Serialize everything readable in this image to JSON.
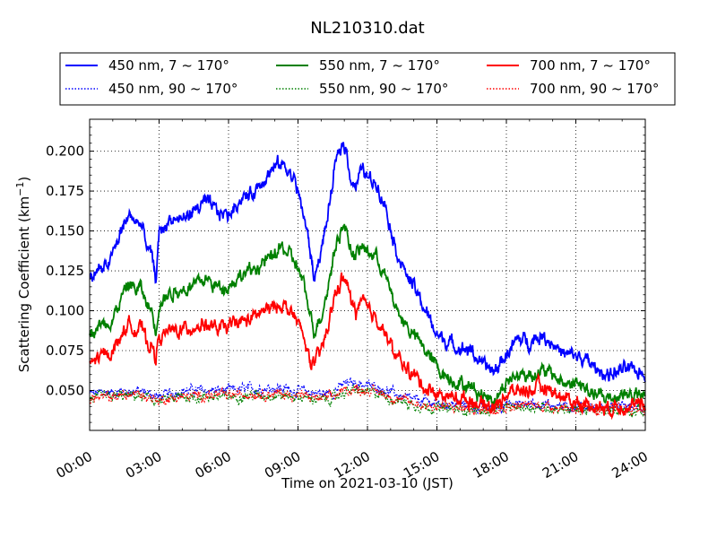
{
  "chart_data": {
    "type": "line",
    "title": "NL210310.dat",
    "xlabel": "Time on 2021-03-10 (JST)",
    "ylabel": "Scattering Coefficient (km",
    "ylabel_sup": "−1",
    "ylabel_close": ")",
    "xlim": [
      0,
      24
    ],
    "ylim": [
      0.025,
      0.22
    ],
    "x_ticks": [
      0,
      3,
      6,
      9,
      12,
      15,
      18,
      21,
      24
    ],
    "x_tick_labels": [
      "00:00",
      "03:00",
      "06:00",
      "09:00",
      "12:00",
      "15:00",
      "18:00",
      "21:00",
      "24:00"
    ],
    "y_ticks": [
      0.05,
      0.075,
      0.1,
      0.125,
      0.15,
      0.175,
      0.2
    ],
    "y_tick_labels": [
      "0.050",
      "0.075",
      "0.100",
      "0.125",
      "0.150",
      "0.175",
      "0.200"
    ],
    "grid": true,
    "legend_placement": "top",
    "series": [
      {
        "name": "450 nm, 7 ~ 170°",
        "color": "#0000ff",
        "style": "solid",
        "x": [
          0,
          0.3,
          0.6,
          1.0,
          1.5,
          1.8,
          2.0,
          2.2,
          2.5,
          2.7,
          2.85,
          3.0,
          3.2,
          3.5,
          4.0,
          4.5,
          5.0,
          5.5,
          6.0,
          6.5,
          7.0,
          7.5,
          8.0,
          8.3,
          8.6,
          8.9,
          9.2,
          9.5,
          9.7,
          10.0,
          10.3,
          10.6,
          10.9,
          11.1,
          11.3,
          11.5,
          11.8,
          12.0,
          12.4,
          12.8,
          13.2,
          13.6,
          14.0,
          14.5,
          15.0,
          15.5,
          16.0,
          16.5,
          17.0,
          17.5,
          18.0,
          18.5,
          19.0,
          19.5,
          20.0,
          20.5,
          21.0,
          21.5,
          22.0,
          22.5,
          23.0,
          23.5,
          24.0
        ],
        "values": [
          0.118,
          0.126,
          0.125,
          0.135,
          0.155,
          0.16,
          0.155,
          0.155,
          0.14,
          0.133,
          0.118,
          0.148,
          0.152,
          0.158,
          0.157,
          0.163,
          0.168,
          0.162,
          0.16,
          0.17,
          0.173,
          0.183,
          0.19,
          0.192,
          0.188,
          0.18,
          0.163,
          0.14,
          0.12,
          0.138,
          0.16,
          0.19,
          0.205,
          0.2,
          0.182,
          0.178,
          0.19,
          0.183,
          0.18,
          0.165,
          0.14,
          0.125,
          0.115,
          0.1,
          0.085,
          0.08,
          0.077,
          0.075,
          0.065,
          0.062,
          0.073,
          0.082,
          0.081,
          0.085,
          0.08,
          0.072,
          0.072,
          0.068,
          0.062,
          0.06,
          0.063,
          0.062,
          0.061
        ]
      },
      {
        "name": "450 nm, 90 ~ 170°",
        "color": "#0000ff",
        "style": "dotted",
        "x": [
          0,
          1.0,
          2.0,
          2.8,
          3.0,
          4.0,
          5.0,
          6.0,
          7.0,
          8.0,
          9.0,
          10.0,
          10.5,
          11.0,
          11.5,
          12.0,
          12.5,
          13.0,
          13.5,
          14.0,
          15.0,
          16.0,
          17.0,
          18.0,
          19.0,
          20.0,
          21.0,
          22.0,
          23.0,
          24.0
        ],
        "values": [
          0.048,
          0.049,
          0.05,
          0.047,
          0.046,
          0.05,
          0.05,
          0.05,
          0.051,
          0.052,
          0.05,
          0.048,
          0.049,
          0.054,
          0.055,
          0.053,
          0.052,
          0.049,
          0.046,
          0.044,
          0.042,
          0.041,
          0.039,
          0.041,
          0.042,
          0.041,
          0.04,
          0.039,
          0.04,
          0.039
        ]
      },
      {
        "name": "550 nm, 7 ~ 170°",
        "color": "#008000",
        "style": "solid",
        "x": [
          0,
          0.3,
          0.6,
          1.0,
          1.5,
          1.8,
          2.0,
          2.2,
          2.5,
          2.7,
          2.85,
          3.0,
          3.2,
          3.5,
          4.0,
          4.5,
          5.0,
          5.5,
          6.0,
          6.5,
          7.0,
          7.5,
          8.0,
          8.3,
          8.6,
          8.9,
          9.2,
          9.5,
          9.7,
          10.0,
          10.3,
          10.6,
          10.9,
          11.1,
          11.3,
          11.5,
          11.8,
          12.0,
          12.4,
          12.8,
          13.2,
          13.6,
          14.0,
          14.5,
          15.0,
          15.5,
          16.0,
          16.5,
          17.0,
          17.5,
          18.0,
          18.5,
          19.0,
          19.5,
          20.0,
          20.5,
          21.0,
          21.5,
          22.0,
          22.5,
          23.0,
          23.5,
          24.0
        ],
        "values": [
          0.085,
          0.09,
          0.092,
          0.095,
          0.112,
          0.118,
          0.112,
          0.115,
          0.103,
          0.1,
          0.087,
          0.105,
          0.107,
          0.112,
          0.113,
          0.116,
          0.12,
          0.115,
          0.116,
          0.122,
          0.125,
          0.13,
          0.135,
          0.14,
          0.135,
          0.13,
          0.118,
          0.1,
          0.088,
          0.097,
          0.115,
          0.14,
          0.153,
          0.15,
          0.138,
          0.135,
          0.14,
          0.137,
          0.134,
          0.12,
          0.103,
          0.092,
          0.085,
          0.075,
          0.065,
          0.058,
          0.055,
          0.052,
          0.047,
          0.045,
          0.055,
          0.06,
          0.06,
          0.062,
          0.06,
          0.054,
          0.055,
          0.05,
          0.046,
          0.045,
          0.048,
          0.047,
          0.046
        ]
      },
      {
        "name": "550 nm, 90 ~ 170°",
        "color": "#008000",
        "style": "dotted",
        "x": [
          0,
          1.0,
          2.0,
          2.8,
          3.0,
          4.0,
          5.0,
          6.0,
          7.0,
          8.0,
          9.0,
          10.0,
          10.5,
          11.0,
          11.5,
          12.0,
          12.5,
          13.0,
          13.5,
          14.0,
          15.0,
          16.0,
          17.0,
          18.0,
          19.0,
          20.0,
          21.0,
          22.0,
          23.0,
          24.0
        ],
        "values": [
          0.045,
          0.046,
          0.047,
          0.044,
          0.043,
          0.046,
          0.046,
          0.046,
          0.047,
          0.047,
          0.046,
          0.044,
          0.045,
          0.049,
          0.05,
          0.049,
          0.048,
          0.045,
          0.043,
          0.041,
          0.039,
          0.038,
          0.037,
          0.039,
          0.04,
          0.039,
          0.038,
          0.037,
          0.038,
          0.037
        ]
      },
      {
        "name": "700 nm, 7 ~ 170°",
        "color": "#ff0000",
        "style": "solid",
        "x": [
          0,
          0.3,
          0.6,
          1.0,
          1.5,
          1.8,
          2.0,
          2.2,
          2.5,
          2.7,
          2.85,
          3.0,
          3.2,
          3.5,
          4.0,
          4.5,
          5.0,
          5.5,
          6.0,
          6.5,
          7.0,
          7.5,
          8.0,
          8.3,
          8.6,
          8.9,
          9.2,
          9.5,
          9.7,
          10.0,
          10.3,
          10.6,
          10.9,
          11.1,
          11.3,
          11.5,
          11.8,
          12.0,
          12.4,
          12.8,
          13.2,
          13.6,
          14.0,
          14.5,
          15.0,
          15.5,
          16.0,
          16.5,
          17.0,
          17.5,
          18.0,
          18.5,
          19.0,
          19.5,
          20.0,
          20.5,
          21.0,
          21.5,
          22.0,
          22.5,
          23.0,
          23.5,
          24.0
        ],
        "values": [
          0.066,
          0.07,
          0.072,
          0.075,
          0.088,
          0.092,
          0.088,
          0.09,
          0.08,
          0.078,
          0.07,
          0.083,
          0.085,
          0.087,
          0.088,
          0.09,
          0.092,
          0.088,
          0.09,
          0.093,
          0.095,
          0.1,
          0.102,
          0.105,
          0.1,
          0.095,
          0.085,
          0.07,
          0.066,
          0.075,
          0.09,
          0.11,
          0.12,
          0.118,
          0.105,
          0.1,
          0.105,
          0.1,
          0.096,
          0.085,
          0.072,
          0.065,
          0.06,
          0.052,
          0.048,
          0.046,
          0.045,
          0.044,
          0.041,
          0.04,
          0.048,
          0.05,
          0.05,
          0.052,
          0.05,
          0.045,
          0.043,
          0.041,
          0.04,
          0.039,
          0.041,
          0.04,
          0.04
        ]
      },
      {
        "name": "700 nm, 90 ~ 170°",
        "color": "#ff0000",
        "style": "dotted",
        "x": [
          0,
          1.0,
          2.0,
          2.8,
          3.0,
          4.0,
          5.0,
          6.0,
          7.0,
          8.0,
          9.0,
          10.0,
          10.5,
          11.0,
          11.5,
          12.0,
          12.5,
          13.0,
          13.5,
          14.0,
          15.0,
          16.0,
          17.0,
          18.0,
          19.0,
          20.0,
          21.0,
          22.0,
          23.0,
          24.0
        ],
        "values": [
          0.045,
          0.046,
          0.048,
          0.045,
          0.044,
          0.046,
          0.047,
          0.047,
          0.048,
          0.048,
          0.047,
          0.045,
          0.046,
          0.05,
          0.051,
          0.05,
          0.049,
          0.046,
          0.044,
          0.042,
          0.04,
          0.039,
          0.038,
          0.04,
          0.041,
          0.04,
          0.039,
          0.038,
          0.039,
          0.038
        ]
      }
    ]
  }
}
